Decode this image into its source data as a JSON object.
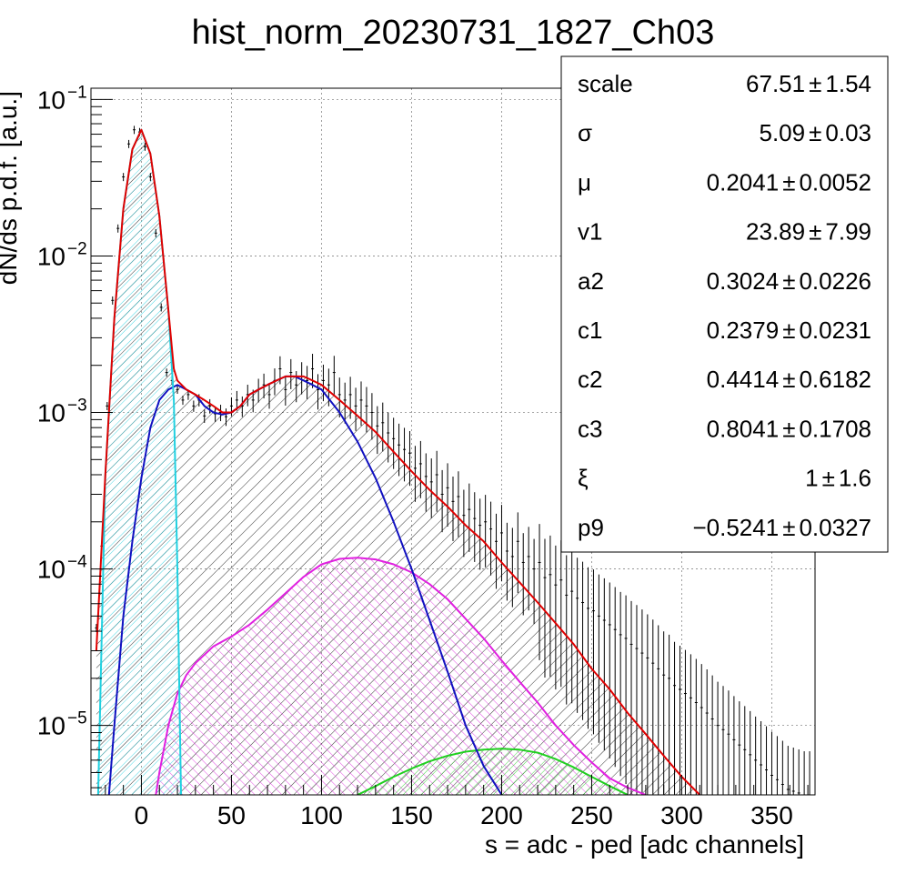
{
  "chart_data": {
    "type": "line",
    "title": "hist_norm_20230731_1827_Ch03",
    "xlabel": "s = adc - ped [adc channels]",
    "ylabel": "dN/ds p.d.f. [a.u.]",
    "xlim": [
      -28,
      374
    ],
    "ylim": [
      3.6e-06,
      0.118
    ],
    "y_scale": "log",
    "x_ticks": [
      0,
      50,
      100,
      150,
      200,
      250,
      300,
      350
    ],
    "y_ticks": [
      {
        "value": 0.1,
        "mant": "10",
        "exp": "−1"
      },
      {
        "value": 0.01,
        "mant": "10",
        "exp": "−2"
      },
      {
        "value": 0.001,
        "mant": "10",
        "exp": "−3"
      },
      {
        "value": 0.0001,
        "mant": "10",
        "exp": "−4"
      },
      {
        "value": 1e-05,
        "mant": "10",
        "exp": "−5"
      }
    ],
    "grid": true,
    "colors": {
      "total": "#e00000",
      "pedestal": "#20d0e0",
      "single": "#1010c0",
      "double": "#e020e0",
      "triple": "#20d020",
      "data": "#000000"
    },
    "series": [
      {
        "key": "data",
        "x": [
          -25,
          -22,
          -19,
          -16,
          -13,
          -10,
          -7,
          -4,
          -1,
          2,
          5,
          8,
          11,
          14,
          17,
          20,
          23,
          26,
          29,
          32,
          35,
          38,
          41,
          44,
          47,
          50,
          53,
          56,
          59,
          62,
          65,
          68,
          71,
          74,
          77,
          80,
          83,
          86,
          89,
          92,
          95,
          98,
          101,
          104,
          107,
          110,
          113,
          116,
          119,
          122,
          125,
          128,
          131,
          134,
          137,
          140,
          143,
          146,
          149,
          152,
          155,
          158,
          161,
          164,
          167,
          170,
          173,
          176,
          179,
          182,
          185,
          188,
          191,
          194,
          197,
          200,
          203,
          206,
          209,
          212,
          215,
          218,
          221,
          224,
          227,
          230,
          233,
          236,
          239,
          242,
          245,
          248,
          251,
          254,
          257,
          260,
          263,
          266,
          269,
          272,
          275,
          278,
          281,
          284,
          287,
          290,
          293,
          296,
          299,
          302,
          305,
          308,
          311,
          314,
          317,
          320,
          323,
          326,
          329,
          332,
          335,
          338,
          341,
          344,
          347,
          350,
          353,
          356,
          359,
          362,
          365,
          368,
          371
        ],
        "values": [
          4.2e-05,
          0.00014,
          0.0011,
          0.0052,
          0.015,
          0.032,
          0.052,
          0.064,
          0.062,
          0.05,
          0.032,
          0.014,
          0.0047,
          0.0018,
          0.0016,
          0.0014,
          0.0012,
          0.0013,
          0.0011,
          0.0012,
          0.00095,
          0.0011,
          0.00098,
          0.001,
          0.00094,
          0.0011,
          0.0012,
          0.0011,
          0.0013,
          0.0012,
          0.0014,
          0.0015,
          0.0013,
          0.0016,
          0.0019,
          0.0014,
          0.0018,
          0.0015,
          0.0017,
          0.0016,
          0.0019,
          0.0014,
          0.0016,
          0.0015,
          0.0018,
          0.0013,
          0.0012,
          0.0013,
          0.0011,
          0.0012,
          0.0011,
          0.001,
          0.00082,
          0.00086,
          0.00074,
          0.00068,
          0.00062,
          0.00058,
          0.00055,
          0.00044,
          0.00047,
          0.00039,
          0.00036,
          0.0004,
          0.0003,
          0.00033,
          0.00027,
          0.00029,
          0.00022,
          0.00024,
          0.00021,
          0.00019,
          0.0002,
          0.00018,
          0.00015,
          0.00017,
          0.00013,
          0.00012,
          0.00015,
          0.00011,
          0.00012,
          0.0001,
          0.00011,
          8.8e-05,
          9.2e-05,
          7.9e-05,
          8.5e-05,
          6.8e-05,
          7.2e-05,
          6.5e-05,
          6.1e-05,
          5.6e-05,
          5.4e-05,
          5e-05,
          4.7e-05,
          4.4e-05,
          4.1e-05,
          3.8e-05,
          3.6e-05,
          3.3e-05,
          3.1e-05,
          2.9e-05,
          2.7e-05,
          2.5e-05,
          2.3e-05,
          2.1e-05,
          2e-05,
          1.8e-05,
          1.7e-05,
          1.6e-05,
          1.5e-05,
          1.4e-05,
          1.3e-05,
          1.2e-05,
          1.1e-05,
          1e-05,
          9.4e-06,
          8.8e-06,
          8.1e-06,
          7.5e-06,
          7e-06,
          6.5e-06,
          6e-06,
          5.6e-06,
          5.2e-06,
          4.8e-06,
          4.5e-06,
          4.2e-06,
          3.9e-06,
          3.8e-06,
          3.7e-06,
          3.6e-06,
          3.6e-06
        ]
      },
      {
        "key": "total",
        "x": [
          -25,
          -20,
          -15,
          -10,
          -5,
          0,
          5,
          10,
          15,
          18,
          20,
          25,
          30,
          35,
          40,
          45,
          50,
          55,
          60,
          65,
          70,
          75,
          80,
          85,
          90,
          95,
          100,
          110,
          120,
          130,
          140,
          150,
          160,
          170,
          180,
          190,
          200,
          210,
          220,
          230,
          240,
          250,
          260,
          270,
          280,
          290,
          300,
          310
        ],
        "values": [
          3e-05,
          0.0004,
          0.004,
          0.02,
          0.048,
          0.064,
          0.045,
          0.018,
          0.0045,
          0.0019,
          0.0016,
          0.0014,
          0.0013,
          0.0012,
          0.0011,
          0.001,
          0.001,
          0.0011,
          0.0013,
          0.0014,
          0.0015,
          0.0016,
          0.0017,
          0.0017,
          0.0017,
          0.0016,
          0.0015,
          0.0012,
          0.00095,
          0.00075,
          0.00056,
          0.00042,
          0.00032,
          0.00025,
          0.00019,
          0.00015,
          0.00011,
          8.2e-05,
          6.1e-05,
          4.5e-05,
          3.3e-05,
          2.3e-05,
          1.7e-05,
          1.2e-05,
          8.8e-06,
          6.4e-06,
          4.7e-06,
          3.6e-06
        ]
      },
      {
        "key": "pedestal",
        "x": [
          -24,
          -20,
          -15,
          -10,
          -5,
          0,
          5,
          10,
          15,
          18,
          20,
          22
        ],
        "values": [
          3.6e-06,
          0.0004,
          0.004,
          0.02,
          0.048,
          0.064,
          0.045,
          0.018,
          0.0045,
          0.0012,
          0.0001,
          3.6e-06
        ]
      },
      {
        "key": "single",
        "x": [
          -18,
          -15,
          -10,
          -5,
          0,
          5,
          10,
          15,
          20,
          25,
          30,
          35,
          40,
          45,
          50,
          55,
          60,
          65,
          70,
          75,
          80,
          85,
          90,
          95,
          100,
          110,
          120,
          130,
          140,
          150,
          160,
          170,
          180,
          190,
          200
        ],
        "values": [
          3.6e-06,
          1e-05,
          5e-05,
          0.00015,
          0.00038,
          0.0008,
          0.0012,
          0.0014,
          0.0015,
          0.0014,
          0.0013,
          0.0011,
          0.001,
          0.00097,
          0.001,
          0.0011,
          0.0013,
          0.0014,
          0.0015,
          0.0016,
          0.0017,
          0.0017,
          0.0016,
          0.0015,
          0.0014,
          0.001,
          0.00065,
          0.00038,
          0.0002,
          0.0001,
          4.7e-05,
          2.2e-05,
          1e-05,
          5.5e-06,
          3.6e-06
        ]
      },
      {
        "key": "double",
        "x": [
          8,
          10,
          15,
          20,
          25,
          30,
          40,
          50,
          60,
          70,
          80,
          90,
          100,
          110,
          120,
          130,
          140,
          150,
          160,
          170,
          180,
          190,
          200,
          210,
          220,
          230,
          240,
          250,
          260,
          270,
          280
        ],
        "values": [
          3.6e-06,
          5e-06,
          1e-05,
          1.6e-05,
          2.1e-05,
          2.5e-05,
          3.2e-05,
          3.7e-05,
          4.4e-05,
          5.5e-05,
          7e-05,
          8.9e-05,
          0.000107,
          0.000116,
          0.000118,
          0.000115,
          0.000107,
          9.5e-05,
          8e-05,
          6.4e-05,
          4.8e-05,
          3.6e-05,
          2.6e-05,
          1.9e-05,
          1.4e-05,
          1e-05,
          7.5e-06,
          5.8e-06,
          4.6e-06,
          4e-06,
          3.6e-06
        ]
      },
      {
        "key": "triple",
        "x": [
          120,
          130,
          140,
          150,
          160,
          170,
          180,
          190,
          200,
          210,
          220,
          230,
          240,
          250,
          260,
          270
        ],
        "values": [
          3.6e-06,
          4.1e-06,
          4.7e-06,
          5.3e-06,
          5.9e-06,
          6.4e-06,
          6.8e-06,
          7e-06,
          7.1e-06,
          7e-06,
          6.7e-06,
          6.1e-06,
          5.4e-06,
          4.7e-06,
          4.1e-06,
          3.6e-06
        ]
      }
    ],
    "stats": [
      {
        "name": "scale",
        "value": "67.51",
        "error": "1.54"
      },
      {
        "name": "σ",
        "value": "5.09",
        "error": "0.03"
      },
      {
        "name": "μ",
        "value": "0.2041",
        "error": "0.0052"
      },
      {
        "name": "v1",
        "value": "23.89",
        "error": "7.99"
      },
      {
        "name": "a2",
        "value": "0.3024",
        "error": "0.0226"
      },
      {
        "name": "c1",
        "value": "0.2379",
        "error": "0.0231"
      },
      {
        "name": "c2",
        "value": "0.4414",
        "error": "0.6182"
      },
      {
        "name": "c3",
        "value": "0.8041",
        "error": "0.1708"
      },
      {
        "name": "ξ",
        "value": "1",
        "error": "1.6"
      },
      {
        "name": "p9",
        "value": "−0.5241",
        "error": "0.0327"
      }
    ],
    "stats_pm": "±"
  }
}
